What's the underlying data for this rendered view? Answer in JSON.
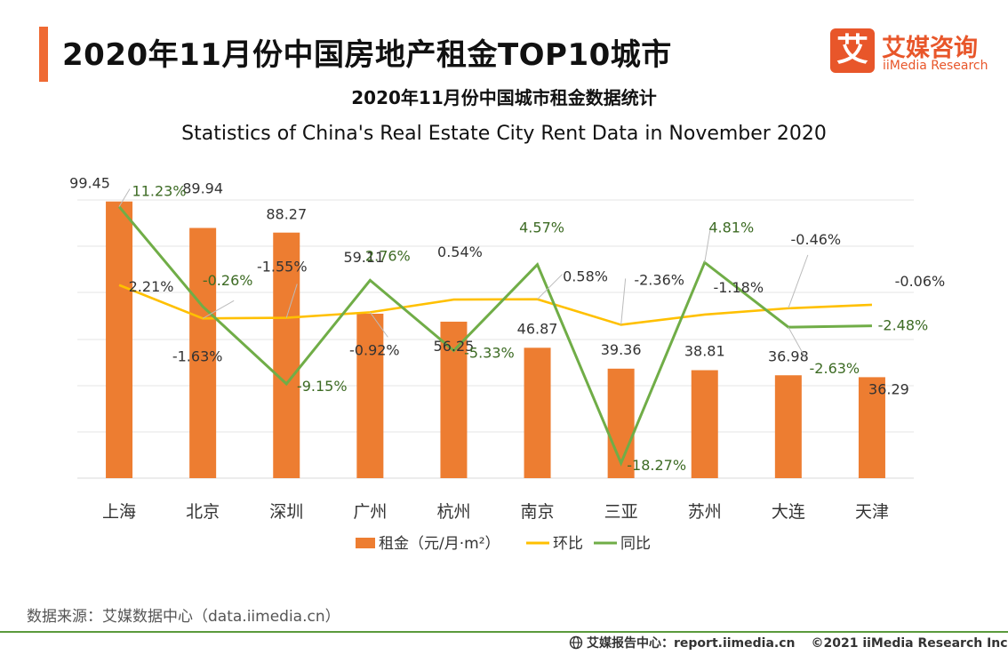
{
  "header": {
    "title": "2020年11月份中国房地产租金TOP10城市",
    "subtitle_cn": "2020年11月份中国城市租金数据统计",
    "subtitle_en": "Statistics of China's Real Estate City Rent Data in November  2020"
  },
  "logo": {
    "mark": "艾",
    "name_cn": "艾媒咨询",
    "name_en": "iiMedia Research"
  },
  "colors": {
    "bar": "#ed7d31",
    "huanbi": "#ffc000",
    "tongbi": "#70ad47",
    "accent": "#ef6a33"
  },
  "chart_data": {
    "type": "bar",
    "categories": [
      "上海",
      "北京",
      "深圳",
      "广州",
      "杭州",
      "南京",
      "三亚",
      "苏州",
      "大连",
      "天津"
    ],
    "series": [
      {
        "name": "租金（元/月·m²）",
        "type": "bar",
        "values": [
          99.45,
          89.94,
          88.27,
          59.11,
          56.25,
          46.87,
          39.36,
          38.81,
          36.98,
          36.29
        ],
        "labels": [
          "99.45",
          "89.94",
          "88.27",
          "59.11",
          "56.25",
          "46.87",
          "39.36",
          "38.81",
          "36.98",
          "36.29"
        ]
      },
      {
        "name": "环比",
        "type": "line",
        "values": [
          2.21,
          -1.63,
          -1.55,
          -0.92,
          0.54,
          0.58,
          -2.36,
          -1.18,
          -0.46,
          -0.06
        ],
        "labels": [
          "2.21%",
          "-1.63%",
          "-1.55%",
          "-0.92%",
          "0.54%",
          "0.58%",
          "-2.36%",
          "-1.18%",
          "-0.46%",
          "-0.06%"
        ]
      },
      {
        "name": "同比",
        "type": "line",
        "values": [
          11.23,
          -0.26,
          -9.15,
          2.76,
          -5.33,
          4.57,
          -18.27,
          4.81,
          -2.63,
          -2.48
        ],
        "labels": [
          "11.23%",
          "-0.26%",
          "-9.15%",
          "2.76%",
          "-5.33%",
          "4.57%",
          "-18.27%",
          "4.81%",
          "-2.63%",
          "-2.48%"
        ]
      }
    ],
    "title": "2020年11月份中国城市租金数据统计",
    "xlabel": "",
    "ylabel": "",
    "ylim_bar": [
      0,
      100
    ],
    "ylim_pct": [
      -20,
      12
    ],
    "grid": true,
    "legend": "bottom"
  },
  "footer": {
    "source": "数据来源：艾媒数据中心（data.iimedia.cn）",
    "report_center": "艾媒报告中心：report.iimedia.cn",
    "copyright": "©2021  iiMedia Research  Inc"
  }
}
